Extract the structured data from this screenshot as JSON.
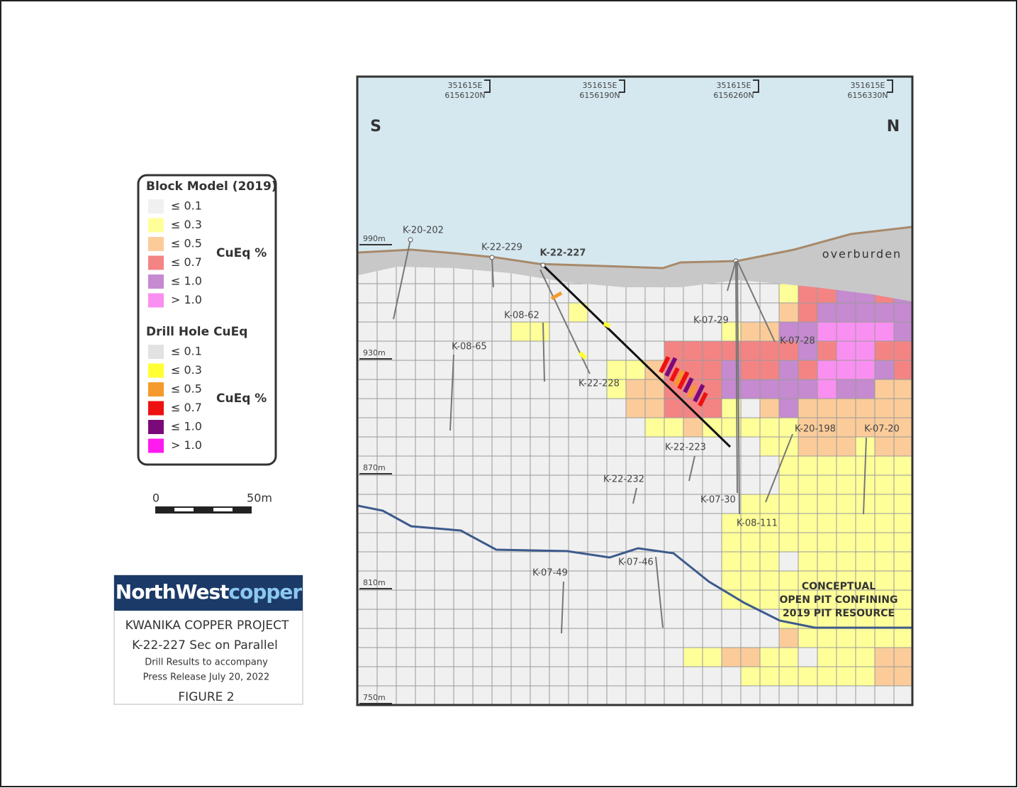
{
  "legend": {
    "block_model": {
      "title": "Block Model (2019)",
      "unit": "CuEq %",
      "items": [
        {
          "label": "≤ 0.1",
          "color": "#f0f0f0"
        },
        {
          "label": "≤ 0.3",
          "color": "#ffff99"
        },
        {
          "label": "≤ 0.5",
          "color": "#fbcc99"
        },
        {
          "label": "≤ 0.7",
          "color": "#f48484"
        },
        {
          "label": "≤ 1.0",
          "color": "#c58ad0"
        },
        {
          "label": "> 1.0",
          "color": "#f98ff0"
        }
      ]
    },
    "drill_hole": {
      "title": "Drill Hole CuEq",
      "unit": "CuEq %",
      "items": [
        {
          "label": "≤ 0.1",
          "color": "#e2e2e2"
        },
        {
          "label": "≤ 0.3",
          "color": "#ffff33"
        },
        {
          "label": "≤ 0.5",
          "color": "#f59a2c"
        },
        {
          "label": "≤ 0.7",
          "color": "#ee1111"
        },
        {
          "label": "≤ 1.0",
          "color": "#7a0a7a"
        },
        {
          "label": "> 1.0",
          "color": "#ff1af0"
        }
      ]
    }
  },
  "scale_bar": {
    "start": "0",
    "end": "50m"
  },
  "logo": {
    "part1": "NorthWest",
    "part2": "copper"
  },
  "title_block": [
    "KWANIKA COPPER PROJECT",
    "K-22-227 Sec on Parallel",
    "Drill Results to accompany",
    "Press Release July 20, 2022",
    "FIGURE 2"
  ],
  "section": {
    "coordinates": [
      {
        "east": "351615E",
        "north": "6156120N"
      },
      {
        "east": "351615E",
        "north": "6156190N"
      },
      {
        "east": "351615E",
        "north": "6156260N"
      },
      {
        "east": "351615E",
        "north": "6156330N"
      }
    ],
    "directions": [
      "S",
      "N"
    ],
    "elevations": [
      "990m",
      "930m",
      "870m",
      "810m",
      "750m"
    ],
    "overburden": "overburden",
    "holes": [
      "K-20-202",
      "K-22-229",
      "K-22-227",
      "K-08-62",
      "K-08-65",
      "K-22-228",
      "K-07-29",
      "K-07-28",
      "K-22-223",
      "K-22-232",
      "K-07-30",
      "K-08-111",
      "K-20-198",
      "K-07-20",
      "K-07-49",
      "K-07-46"
    ],
    "pit_label": [
      "CONCEPTUAL",
      "OPEN PIT CONFINING",
      "2019 PIT RESOURCE"
    ]
  }
}
